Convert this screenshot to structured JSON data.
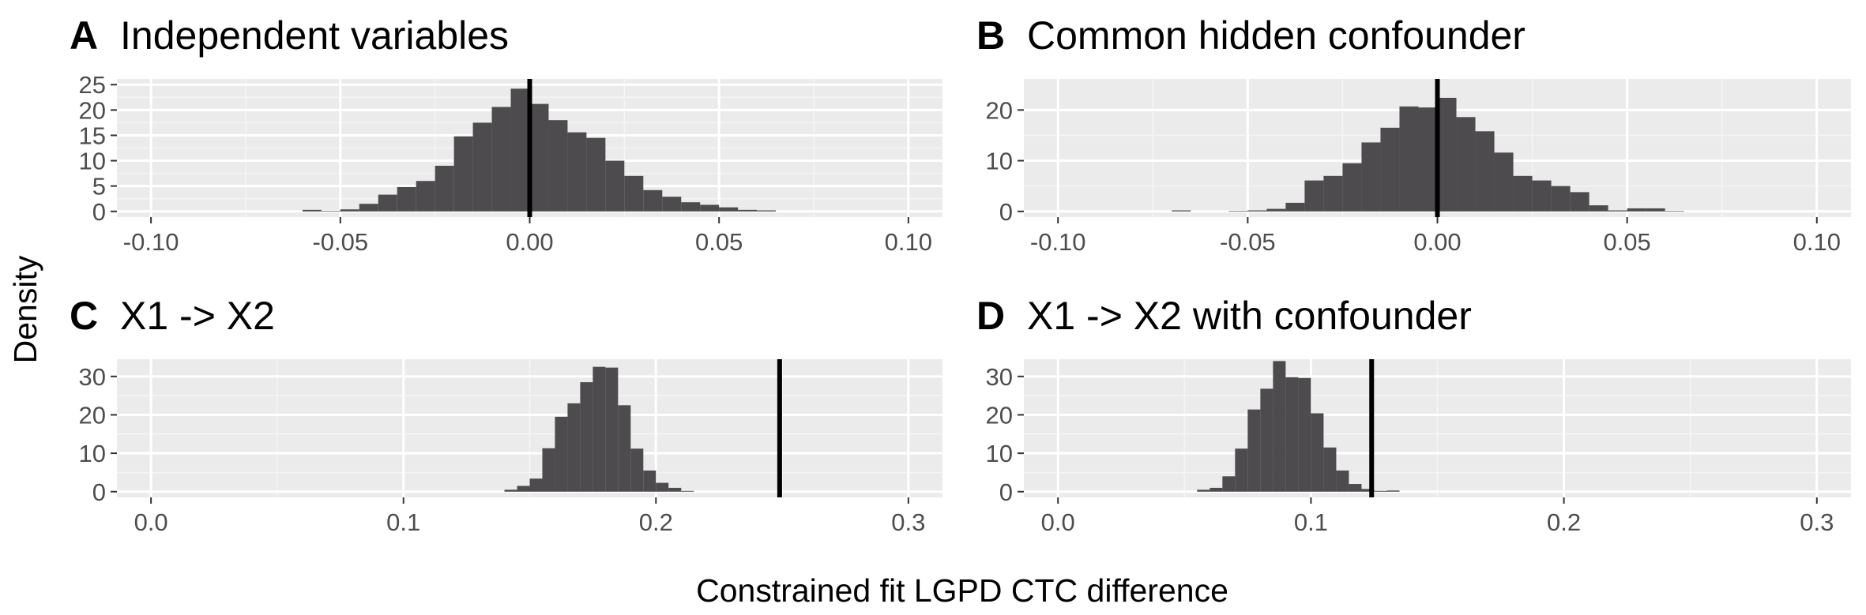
{
  "figure": {
    "y_title": "Density",
    "x_title": "Constrained fit LGPD CTC difference"
  },
  "colors": {
    "panel_background": "#ebebeb",
    "grid_major": "#ffffff",
    "grid_minor": "#f5f5f5",
    "bar_fill": "#4d4b4d",
    "reference_line": "#000000",
    "tick_text": "#4d4d4d"
  },
  "chart_data": [
    {
      "type": "bar",
      "panel": "A",
      "title": "Independent variables",
      "xlim": [
        -0.1,
        0.1
      ],
      "ylim": [
        0,
        25
      ],
      "x_ticks": [
        -0.1,
        -0.05,
        0.0,
        0.05,
        0.1
      ],
      "x_tick_labels": [
        "-0.10",
        "-0.05",
        "0.00",
        "0.05",
        "0.10"
      ],
      "y_ticks": [
        0,
        5,
        10,
        15,
        20,
        25
      ],
      "y_tick_labels": [
        "0",
        "5",
        "10",
        "15",
        "20",
        "25"
      ],
      "bin_width": 0.005,
      "bin_starts": [
        -0.06,
        -0.055,
        -0.05,
        -0.045,
        -0.04,
        -0.035,
        -0.03,
        -0.025,
        -0.02,
        -0.015,
        -0.01,
        -0.005,
        0.0,
        0.005,
        0.01,
        0.015,
        0.02,
        0.025,
        0.03,
        0.035,
        0.04,
        0.045,
        0.05,
        0.055,
        0.06
      ],
      "values": [
        0.3,
        0.1,
        0.4,
        1.5,
        3.3,
        4.8,
        6.0,
        9.0,
        14.8,
        17.5,
        20.6,
        24.2,
        21.2,
        18.0,
        15.6,
        14.5,
        10.0,
        7.0,
        4.2,
        2.9,
        1.8,
        1.3,
        0.8,
        0.3,
        0.2
      ],
      "reference_x": 0.0
    },
    {
      "type": "bar",
      "panel": "B",
      "title": "Common hidden confounder",
      "xlim": [
        -0.1,
        0.1
      ],
      "ylim": [
        0,
        25
      ],
      "x_ticks": [
        -0.1,
        -0.05,
        0.0,
        0.05,
        0.1
      ],
      "x_tick_labels": [
        "-0.10",
        "-0.05",
        "0.00",
        "0.05",
        "0.10"
      ],
      "y_ticks": [
        0,
        10,
        20
      ],
      "y_tick_labels": [
        "0",
        "10",
        "20"
      ],
      "bin_width": 0.005,
      "bin_starts": [
        -0.07,
        -0.065,
        -0.06,
        -0.055,
        -0.05,
        -0.045,
        -0.04,
        -0.035,
        -0.03,
        -0.025,
        -0.02,
        -0.015,
        -0.01,
        -0.005,
        0.0,
        0.005,
        0.01,
        0.015,
        0.02,
        0.025,
        0.03,
        0.035,
        0.04,
        0.045,
        0.05,
        0.055,
        0.06
      ],
      "values": [
        0.2,
        0.0,
        0.0,
        0.1,
        0.2,
        0.5,
        1.7,
        6.1,
        7.0,
        9.5,
        13.6,
        16.5,
        20.7,
        20.5,
        22.4,
        18.6,
        15.8,
        11.6,
        7.0,
        6.1,
        5.0,
        3.8,
        1.2,
        0.2,
        0.6,
        0.6,
        0.1
      ],
      "reference_x": 0.0
    },
    {
      "type": "bar",
      "panel": "C",
      "title": "X1 -> X2",
      "xlim": [
        0.0,
        0.3
      ],
      "ylim": [
        0,
        33
      ],
      "x_ticks": [
        0.0,
        0.1,
        0.2,
        0.3
      ],
      "x_tick_labels": [
        "0.0",
        "0.1",
        "0.2",
        "0.3"
      ],
      "y_ticks": [
        0,
        10,
        20,
        30
      ],
      "y_tick_labels": [
        "0",
        "10",
        "20",
        "30"
      ],
      "bin_width": 0.005,
      "bin_starts": [
        0.14,
        0.145,
        0.15,
        0.155,
        0.16,
        0.165,
        0.17,
        0.175,
        0.18,
        0.185,
        0.19,
        0.195,
        0.2,
        0.205,
        0.21
      ],
      "values": [
        0.5,
        1.5,
        3.4,
        11.3,
        19.5,
        23.0,
        28.5,
        32.5,
        32.3,
        22.5,
        11.2,
        5.5,
        2.3,
        1.0,
        0.2
      ],
      "reference_x": 0.249
    },
    {
      "type": "bar",
      "panel": "D",
      "title": "X1 -> X2 with confounder",
      "xlim": [
        0.0,
        0.3
      ],
      "ylim": [
        0,
        33
      ],
      "x_ticks": [
        0.0,
        0.1,
        0.2,
        0.3
      ],
      "x_tick_labels": [
        "0.0",
        "0.1",
        "0.2",
        "0.3"
      ],
      "y_ticks": [
        0,
        10,
        20,
        30
      ],
      "y_tick_labels": [
        "0",
        "10",
        "20",
        "30"
      ],
      "bin_width": 0.005,
      "bin_starts": [
        0.055,
        0.06,
        0.065,
        0.07,
        0.075,
        0.08,
        0.085,
        0.09,
        0.095,
        0.1,
        0.105,
        0.11,
        0.115,
        0.12,
        0.125,
        0.13
      ],
      "values": [
        0.5,
        1.0,
        4.0,
        11.2,
        21.4,
        26.8,
        34.0,
        29.8,
        29.6,
        20.4,
        11.5,
        5.5,
        2.0,
        0.7,
        0.2,
        0.3
      ],
      "reference_x": 0.124
    }
  ]
}
